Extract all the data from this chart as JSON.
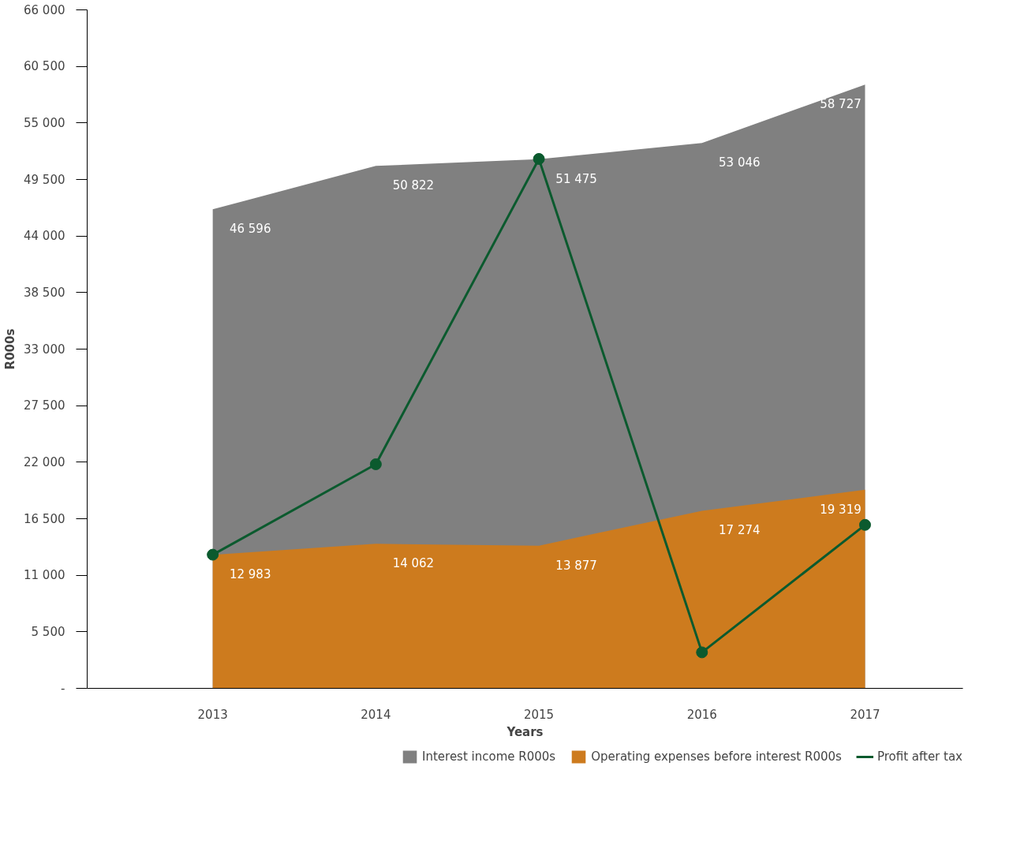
{
  "chart_data": {
    "type": "area",
    "xlabel": "Years",
    "ylabel": "R000s",
    "categories": [
      "2013",
      "2014",
      "2015",
      "2016",
      "2017"
    ],
    "series": [
      {
        "name": "Interest income R000s",
        "color": "#808080",
        "values": [
          46596,
          50822,
          51475,
          53046,
          58727
        ],
        "value_labels": [
          "46 596",
          "50 822",
          "51 475",
          "53 046",
          "58 727"
        ]
      },
      {
        "name": "Operating expenses before interest R000s",
        "color": "#cd7b1e",
        "values": [
          12983,
          14062,
          13877,
          17274,
          19319
        ],
        "value_labels": [
          "12 983",
          "14 062",
          "13 877",
          "17 274",
          "19 319"
        ]
      },
      {
        "name": "Profit after tax",
        "type": "line",
        "color": "#0b5a2e",
        "values": [
          13000,
          21800,
          51500,
          3500,
          15900
        ],
        "marker": "circle"
      }
    ],
    "ylim": [
      0,
      66000
    ],
    "yticks": [
      {
        "value": 0,
        "label": "-"
      },
      {
        "value": 5500,
        "label": "5 500"
      },
      {
        "value": 11000,
        "label": "11 000"
      },
      {
        "value": 16500,
        "label": "16 500"
      },
      {
        "value": 22000,
        "label": "22 000"
      },
      {
        "value": 27500,
        "label": "27 500"
      },
      {
        "value": 33000,
        "label": "33 000"
      },
      {
        "value": 38500,
        "label": "38 500"
      },
      {
        "value": 44000,
        "label": "44 000"
      },
      {
        "value": 49500,
        "label": "49 500"
      },
      {
        "value": 55000,
        "label": "55 000"
      },
      {
        "value": 60500,
        "label": "60 500"
      },
      {
        "value": 66000,
        "label": "66 000"
      }
    ],
    "grid": false,
    "legend": "bottom"
  }
}
